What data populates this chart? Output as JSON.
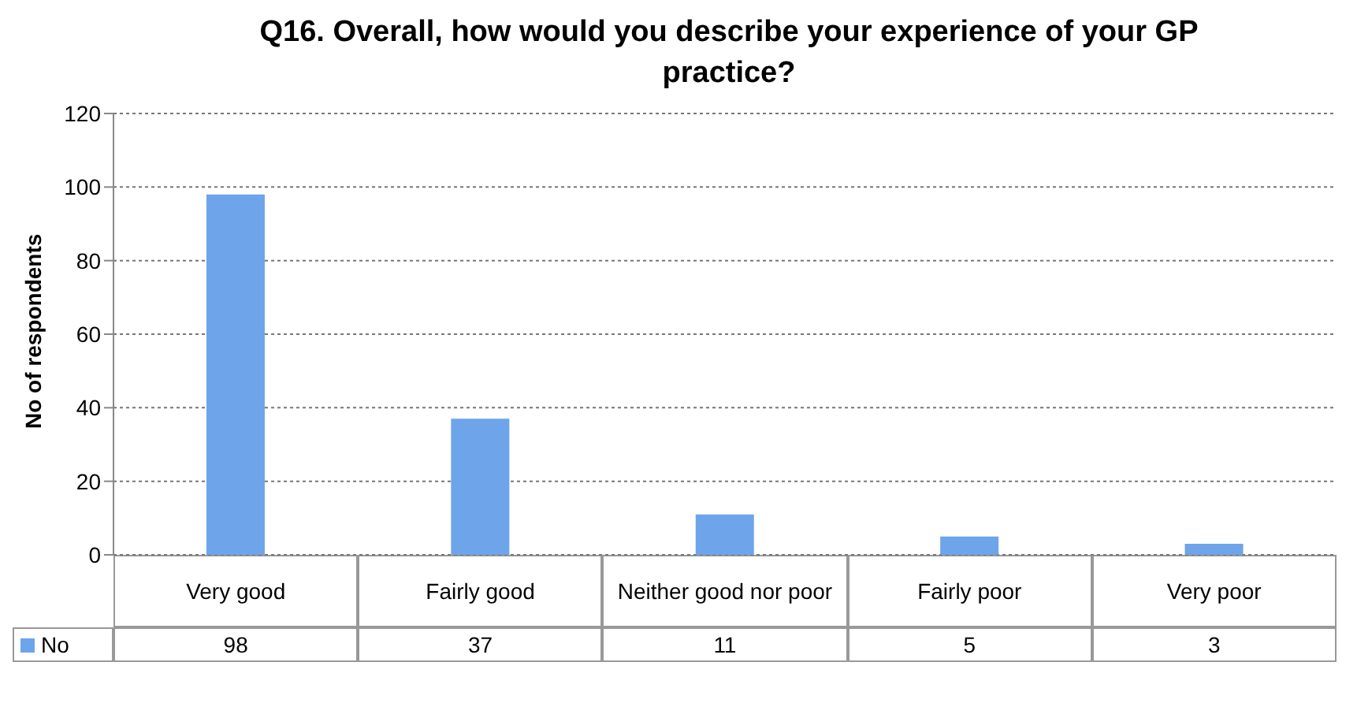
{
  "chart_data": {
    "type": "bar",
    "title": "Q16. Overall, how would you describe your experience of your GP practice?",
    "ylabel": "No of respondents",
    "categories": [
      "Very good",
      "Fairly good",
      "Neither good nor poor",
      "Fairly poor",
      "Very poor"
    ],
    "series": [
      {
        "name": "No",
        "color": "#6ea4ea",
        "values": [
          98,
          37,
          11,
          5,
          3
        ]
      }
    ],
    "ylim": [
      0,
      120
    ],
    "yticks": [
      0,
      20,
      40,
      60,
      80,
      100,
      120
    ],
    "grid": "y",
    "legend": "bottom",
    "data_labels": true
  }
}
